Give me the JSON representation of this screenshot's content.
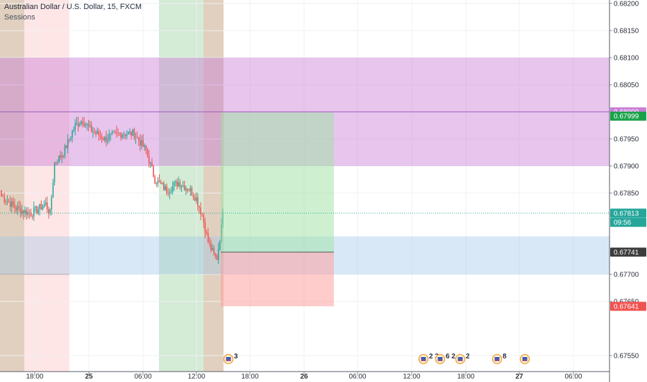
{
  "header": {
    "title": "Australian Dollar / U.S. Dollar, 15, FXCM",
    "indicator": "Sessions"
  },
  "colors": {
    "up": "#26a69a",
    "down": "#ef5350",
    "supply_zone": "#c97fd6",
    "demand_zone": "#9fc5e8",
    "profit_zone": "#9ee2a4",
    "loss_zone": "#ff9a9a",
    "session_asia": "#c9a98a",
    "session_london": "#ffc7c7",
    "session_ny": "#b7e0b9"
  },
  "chart_data": {
    "type": "candlestick",
    "timeframe": "15",
    "y_range": [
      0.6752,
      0.6822
    ],
    "y_ticks": [
      "0.68200",
      "0.68150",
      "0.68100",
      "0.68050",
      "0.67950",
      "0.67900",
      "0.67850",
      "0.67700",
      "0.67650",
      "0.67550"
    ],
    "x_ticks": [
      "18:00",
      "25",
      "06:00",
      "12:00",
      "18:00",
      "26",
      "06:00",
      "12:00",
      "18:00",
      "27",
      "06:00"
    ],
    "price_tags": [
      {
        "label": "0.68000",
        "value": 0.68,
        "color": "#c97fd6"
      },
      {
        "label": "0.67999",
        "value": 0.67992,
        "color": "#1aa14a"
      },
      {
        "label": "0.67813",
        "value": 0.67813,
        "color": "#26a69a"
      },
      {
        "label": "09:56",
        "value": 0.67796,
        "color": "#26a69a"
      },
      {
        "label": "0.67741",
        "value": 0.67741,
        "color": "#3c3c3c"
      },
      {
        "label": "0.67641",
        "value": 0.67641,
        "color": "#ef5350"
      }
    ],
    "zones": [
      {
        "name": "supply",
        "from": 0.679,
        "to": 0.681
      },
      {
        "name": "demand",
        "from": 0.677,
        "to": 0.6777
      }
    ],
    "position": {
      "type": "long",
      "entry": 0.67741,
      "target": 0.67999,
      "stop": 0.67641
    },
    "events": [
      {
        "label": "3"
      },
      {
        "label": "2 3"
      },
      {
        "label": "6 2"
      },
      {
        "label": "2"
      },
      {
        "label": "8"
      },
      {
        "label": ""
      }
    ]
  }
}
